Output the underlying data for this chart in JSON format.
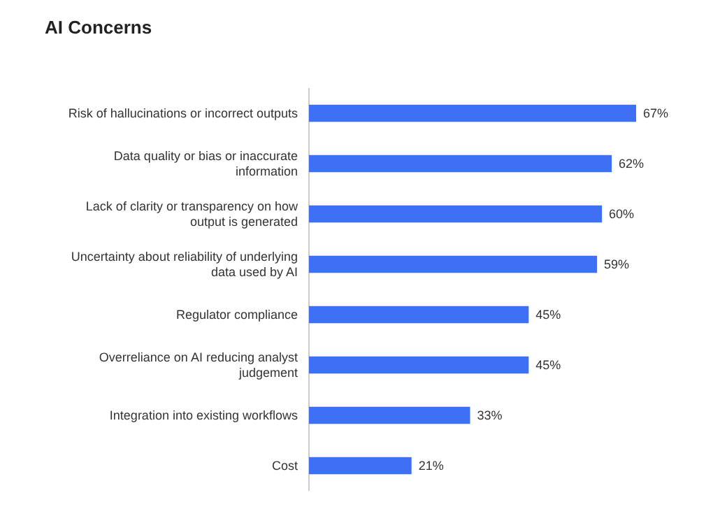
{
  "chart_data": {
    "type": "bar",
    "orientation": "horizontal",
    "title": "AI Concerns",
    "categories": [
      "Risk of hallucinations or incorrect outputs",
      "Data quality or bias or inaccurate information",
      "Lack of clarity or transparency on how output is generated",
      "Uncertainty about reliability of underlying data used by AI",
      "Regulator compliance",
      "Overreliance on AI reducing analyst judgement",
      "Integration into existing workflows",
      "Cost"
    ],
    "values": [
      67,
      62,
      60,
      59,
      45,
      45,
      33,
      21
    ],
    "value_labels": [
      "67%",
      "62%",
      "60%",
      "59%",
      "45%",
      "45%",
      "33%",
      "21%"
    ],
    "color": "#3f6ff5"
  }
}
